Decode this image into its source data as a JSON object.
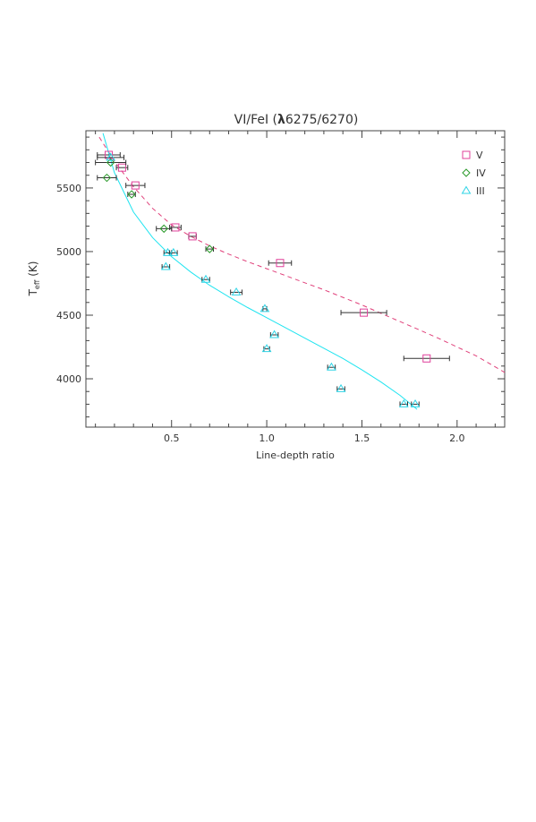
{
  "chart_data": {
    "type": "scatter",
    "title": "VI/FeI (λ6275/6270)",
    "title_prefix": "VI/FeI (",
    "title_lambda": "λ",
    "title_suffix": "6275/6270)",
    "xlabel": "Line-depth ratio",
    "ylabel": "T",
    "ylabel_subscript": "eff",
    "ylabel_unit": " (K)",
    "xlim": [
      0.05,
      2.25
    ],
    "ylim": [
      3620,
      5950
    ],
    "x_ticks": [
      0.5,
      1.0,
      1.5,
      2.0
    ],
    "x_tick_labels": [
      "0.5",
      "1.0",
      "1.5",
      "2.0"
    ],
    "x_minor_ticks": [
      0.1,
      0.2,
      0.3,
      0.4,
      0.6,
      0.7,
      0.8,
      0.9,
      1.1,
      1.2,
      1.3,
      1.4,
      1.6,
      1.7,
      1.8,
      1.9,
      2.1,
      2.2
    ],
    "y_ticks": [
      4000,
      4500,
      5000,
      5500
    ],
    "y_tick_labels": [
      "4000",
      "4500",
      "5000",
      "5500"
    ],
    "y_minor_ticks": [
      3700,
      3800,
      3900,
      4100,
      4200,
      4300,
      4400,
      4600,
      4700,
      4800,
      4900,
      5100,
      5200,
      5300,
      5400,
      5600,
      5700,
      5800,
      5900
    ],
    "grid": false,
    "legend_position": "top-right",
    "series": [
      {
        "name": "V",
        "marker": "square",
        "color": "#e0409a",
        "points": [
          {
            "x": 0.17,
            "y": 5760,
            "xerr": 0.06
          },
          {
            "x": 0.24,
            "y": 5660,
            "xerr": 0.03
          },
          {
            "x": 0.31,
            "y": 5520,
            "xerr": 0.05
          },
          {
            "x": 0.52,
            "y": 5190,
            "xerr": 0.03
          },
          {
            "x": 0.61,
            "y": 5120,
            "xerr": 0.02
          },
          {
            "x": 1.07,
            "y": 4910,
            "xerr": 0.06
          },
          {
            "x": 1.51,
            "y": 4520,
            "xerr": 0.12
          },
          {
            "x": 1.84,
            "y": 4160,
            "xerr": 0.12
          }
        ]
      },
      {
        "name": "IV",
        "marker": "diamond",
        "color": "#2a9a2a",
        "points": [
          {
            "x": 0.16,
            "y": 5580,
            "xerr": 0.05
          },
          {
            "x": 0.18,
            "y": 5700,
            "xerr": 0.08
          },
          {
            "x": 0.29,
            "y": 5450,
            "xerr": 0.02
          },
          {
            "x": 0.46,
            "y": 5180,
            "xerr": 0.04
          },
          {
            "x": 0.7,
            "y": 5020,
            "xerr": 0.02
          }
        ]
      },
      {
        "name": "III",
        "marker": "triangle",
        "color": "#2fd4e6",
        "points": [
          {
            "x": 0.18,
            "y": 5740,
            "xerr": 0.07
          },
          {
            "x": 0.47,
            "y": 4880,
            "xerr": 0.02
          },
          {
            "x": 0.48,
            "y": 4990,
            "xerr": 0.02
          },
          {
            "x": 0.51,
            "y": 4990,
            "xerr": 0.02
          },
          {
            "x": 0.68,
            "y": 4780,
            "xerr": 0.02
          },
          {
            "x": 0.84,
            "y": 4680,
            "xerr": 0.03
          },
          {
            "x": 0.99,
            "y": 4550,
            "xerr": 0.01
          },
          {
            "x": 1.0,
            "y": 4235,
            "xerr": 0.015
          },
          {
            "x": 1.04,
            "y": 4345,
            "xerr": 0.02
          },
          {
            "x": 1.34,
            "y": 4090,
            "xerr": 0.02
          },
          {
            "x": 1.39,
            "y": 3920,
            "xerr": 0.02
          },
          {
            "x": 1.72,
            "y": 3800,
            "xerr": 0.02
          },
          {
            "x": 1.78,
            "y": 3800,
            "xerr": 0.02
          }
        ]
      }
    ],
    "fits": [
      {
        "series": "V",
        "style": "dashed",
        "color": "#e0407a",
        "x": [
          0.12,
          0.2,
          0.3,
          0.4,
          0.5,
          0.6,
          0.7,
          0.8,
          0.9,
          1.0,
          1.1,
          1.2,
          1.3,
          1.4,
          1.5,
          1.6,
          1.7,
          1.8,
          1.9,
          2.0,
          2.1,
          2.25
        ],
        "y": [
          5900,
          5710,
          5510,
          5340,
          5210,
          5120,
          5045,
          4980,
          4920,
          4865,
          4810,
          4755,
          4700,
          4640,
          4580,
          4515,
          4450,
          4385,
          4320,
          4250,
          4180,
          4050
        ]
      },
      {
        "series": "III",
        "style": "solid",
        "color": "#1fe4f0",
        "x": [
          0.14,
          0.2,
          0.3,
          0.4,
          0.5,
          0.6,
          0.7,
          0.8,
          0.9,
          1.0,
          1.1,
          1.2,
          1.3,
          1.4,
          1.5,
          1.6,
          1.7,
          1.79
        ],
        "y": [
          5930,
          5620,
          5310,
          5110,
          4960,
          4840,
          4735,
          4645,
          4560,
          4480,
          4400,
          4320,
          4240,
          4160,
          4070,
          3975,
          3870,
          3760
        ]
      }
    ]
  }
}
